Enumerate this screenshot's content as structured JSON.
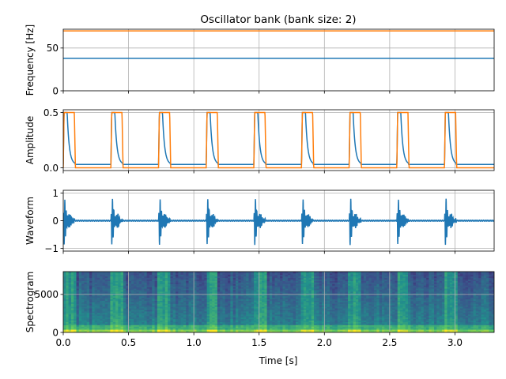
{
  "figure": {
    "title": "Oscillator bank (bank size: 2)",
    "xlabel": "Time [s]",
    "x_tick_labels": [
      "0.0",
      "0.5",
      "1.0",
      "1.5",
      "2.0",
      "2.5",
      "3.0"
    ]
  },
  "colors": {
    "series_1": "#1f77b4",
    "series_2": "#ff7f0e",
    "grid": "#b0b0b0"
  },
  "chart_data": [
    {
      "type": "line",
      "ylabel": "Frequency [Hz]",
      "xlim": [
        0,
        3.3
      ],
      "ylim": [
        0,
        72
      ],
      "y_ticks": [
        0,
        50
      ],
      "y_tick_labels": [
        "0",
        "50"
      ],
      "grid": true,
      "series": [
        {
          "values_constant": 38
        },
        {
          "values_constant": 70
        }
      ]
    },
    {
      "type": "line",
      "ylabel": "Amplitude",
      "xlim": [
        0,
        3.3
      ],
      "ylim": [
        -0.025,
        0.525
      ],
      "y_ticks": [
        0,
        0.5
      ],
      "y_tick_labels": [
        "0.0",
        "0.5"
      ],
      "grid": true,
      "note_pulses": {
        "onsets": [
          0.0,
          0.365,
          0.73,
          1.095,
          1.46,
          1.825,
          2.19,
          2.555,
          2.92
        ],
        "peak": 0.5,
        "series_1_floor": 0.03,
        "series_1_decay_to_floor_s": 0.09,
        "series_2_floor": 0.0,
        "series_2_hold_s": 0.085
      }
    },
    {
      "type": "line",
      "ylabel": "Waveform",
      "xlim": [
        0,
        3.3
      ],
      "ylim": [
        -1.1,
        1.1
      ],
      "y_ticks": [
        -1,
        0,
        1
      ],
      "y_tick_labels": [
        "−1",
        "0",
        "1"
      ],
      "grid": true,
      "burst_onsets": [
        0.0,
        0.365,
        0.73,
        1.095,
        1.46,
        1.825,
        2.19,
        2.555,
        2.92
      ],
      "burst_duration_s": 0.09,
      "peak_amplitude": 1.0
    },
    {
      "type": "heatmap",
      "ylabel": "Spectrogram",
      "xlim": [
        0,
        3.3
      ],
      "ylim": [
        0,
        8000
      ],
      "y_ticks": [
        0,
        5000
      ],
      "y_tick_labels": [
        "0",
        "5000"
      ],
      "grid": true,
      "burst_onsets": [
        0.0,
        0.365,
        0.73,
        1.095,
        1.46,
        1.825,
        2.19,
        2.555,
        2.92
      ],
      "colormap": "viridis"
    }
  ]
}
